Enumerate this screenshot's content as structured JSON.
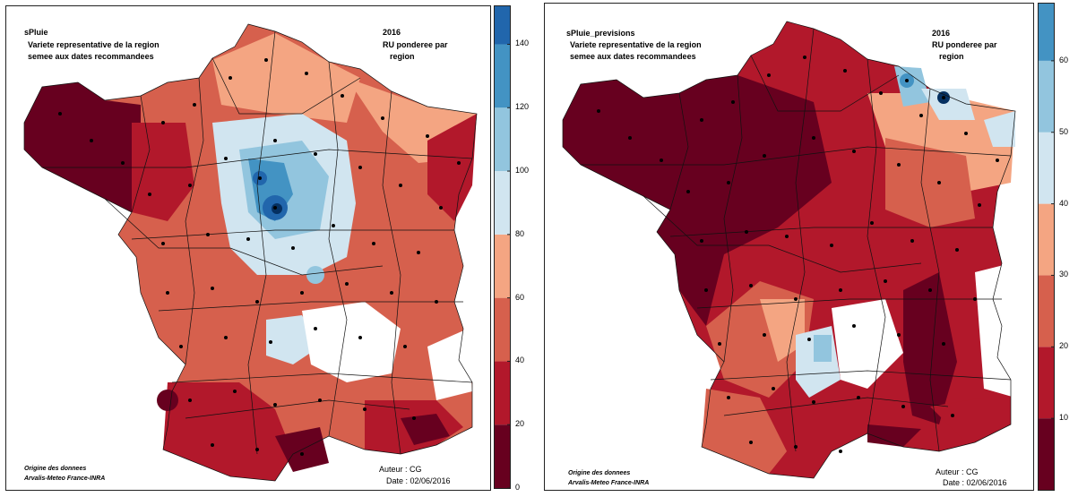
{
  "maps": [
    {
      "variable": "sPluie",
      "subtitle_1": "Variete representative de la region",
      "subtitle_2": "semee aux dates recommandees",
      "year": "2016",
      "ru_1": "RU ponderee par",
      "ru_2": "region",
      "source_1": "Origine des donnees",
      "source_2": "Arvalis-Meteo France-INRA",
      "author": "Auteur : CG",
      "date": "Date : 02/06/2016",
      "legend": {
        "breaks": [
          0,
          20,
          40,
          60,
          80,
          100,
          120,
          140
        ],
        "tick_labels": [
          "0",
          "20",
          "40",
          "60",
          "80",
          "100",
          "120",
          "140"
        ],
        "colors": [
          "#67001f",
          "#b2182b",
          "#d6604d",
          "#f4a582",
          "#d1e5f0",
          "#92c5de",
          "#4393c3",
          "#2166ac",
          "#053061"
        ],
        "max": 152
      }
    },
    {
      "variable": "sPluie_previsions",
      "subtitle_1": "Variete representative de la region",
      "subtitle_2": "semee aux dates recommandees",
      "year": "2016",
      "ru_1": "RU ponderee par",
      "ru_2": "region",
      "source_1": "Origine des donnees",
      "source_2": "Arvalis-Meteo France-INRA",
      "author": "Auteur : CG",
      "date": "Date : 02/06/2016",
      "legend": {
        "breaks": [
          0,
          10,
          20,
          30,
          40,
          50,
          60
        ],
        "tick_labels": [
          "10",
          "20",
          "30",
          "40",
          "50",
          "60"
        ],
        "tick_values": [
          10,
          20,
          30,
          40,
          50,
          60
        ],
        "colors": [
          "#67001f",
          "#b2182b",
          "#d6604d",
          "#f4a582",
          "#d1e5f0",
          "#92c5de",
          "#4393c3",
          "#2166ac",
          "#053061"
        ],
        "max": 68
      }
    }
  ]
}
